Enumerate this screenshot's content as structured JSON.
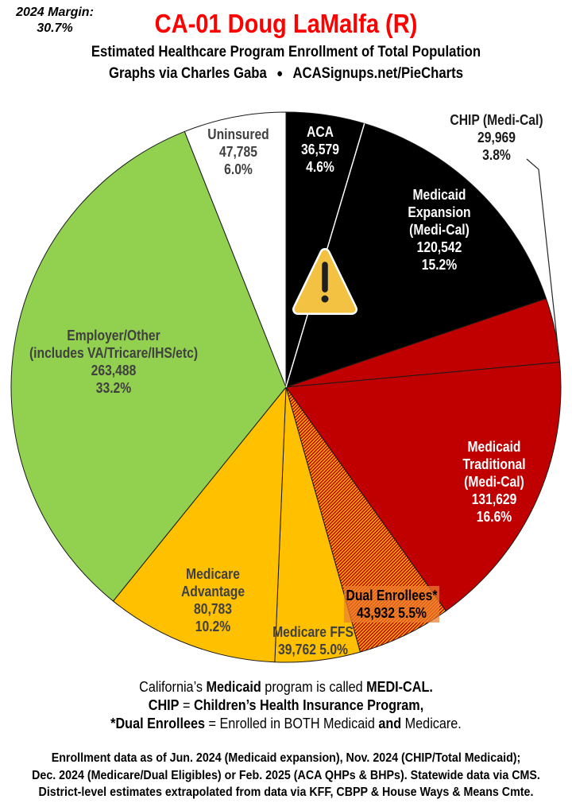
{
  "header": {
    "margin_label": "2024 Margin:",
    "margin_value": "30.7%",
    "title": "CA-01 Doug LaMalfa (R)",
    "subtitle": "Estimated Healthcare Program Enrollment of Total Population",
    "credit_left": "Graphs via Charles Gaba",
    "credit_sep": "●",
    "credit_right": "ACASignups.net/PieCharts"
  },
  "chart_data": {
    "type": "pie",
    "title": "Estimated Healthcare Program Enrollment of Total Population",
    "direction": "clockwise",
    "start_angle_deg": 0,
    "slices": [
      {
        "id": "aca",
        "name": "ACA",
        "value": 36579,
        "value_display": "36,579",
        "pct": "4.6%",
        "color": "#000000",
        "label_color": "#FFFFFF",
        "label_lines": [
          "ACA",
          "36,579",
          "4.6%"
        ]
      },
      {
        "id": "medicaid-expansion",
        "name": "Medicaid Expansion (Medi-Cal)",
        "value": 120542,
        "value_display": "120,542",
        "pct": "15.2%",
        "color": "#000000",
        "label_color": "#FFFFFF",
        "label_lines": [
          "Medicaid",
          "Expansion",
          "(Medi-Cal)",
          "120,542",
          "15.2%"
        ]
      },
      {
        "id": "chip",
        "name": "CHIP (Medi-Cal)",
        "value": 29969,
        "value_display": "29,969",
        "pct": "3.8%",
        "color": "#C00000",
        "label_color": "#1A1A1A",
        "label_outside": true,
        "callout": true,
        "label_lines": [
          "CHIP (Medi-Cal)",
          "29,969",
          "3.8%"
        ]
      },
      {
        "id": "medicaid-traditional",
        "name": "Medicaid Traditional (Medi-Cal)",
        "value": 131629,
        "value_display": "131,629",
        "pct": "16.6%",
        "color": "#C00000",
        "label_color": "#FFFFFF",
        "label_lines": [
          "Medicaid",
          "Traditional",
          "(Medi-Cal)",
          "131,629",
          "16.6%"
        ]
      },
      {
        "id": "dual-enrollees",
        "name": "Dual Enrollees*",
        "value": 43932,
        "value_display": "43,932",
        "pct": "5.5%",
        "color": "hatch",
        "hatch_colors": [
          "#FFC000",
          "#C00000"
        ],
        "label_color": "#000000",
        "label_bg": "rgba(237,125,49,0.72)",
        "label_lines": [
          "Dual Enrollees*",
          "43,932 5.5%"
        ]
      },
      {
        "id": "medicare-ffs",
        "name": "Medicare FFS",
        "value": 39762,
        "value_display": "39,762",
        "pct": "5.0%",
        "color": "#FFC000",
        "label_color": "#404040",
        "label_lines": [
          "Medicare FFS",
          "39,762 5.0%"
        ]
      },
      {
        "id": "medicare-advantage",
        "name": "Medicare Advantage",
        "value": 80783,
        "value_display": "80,783",
        "pct": "10.2%",
        "color": "#FFC000",
        "label_color": "#404040",
        "label_lines": [
          "Medicare",
          "Advantage",
          "80,783",
          "10.2%"
        ]
      },
      {
        "id": "employer-other",
        "name": "Employer/Other (includes VA/Tricare/IHS/etc)",
        "value": 263488,
        "value_display": "263,488",
        "pct": "33.2%",
        "color": "#92D050",
        "label_color": "#404040",
        "label_lines": [
          "Employer/Other",
          "(includes VA/Tricare/IHS/etc)",
          "263,488",
          "33.2%"
        ]
      },
      {
        "id": "uninsured",
        "name": "Uninsured",
        "value": 47785,
        "value_display": "47,785",
        "pct": "6.0%",
        "color": "#FFFFFF",
        "label_color": "#404040",
        "label_lines": [
          "Uninsured",
          "47,785",
          "6.0%"
        ]
      }
    ],
    "warning_icon": {
      "fill": "#F4C243",
      "border": "#FFFFFF",
      "mark": "#1F1F1F"
    }
  },
  "footnotes": {
    "lines": [
      [
        [
          "California’s ",
          0
        ],
        [
          "Medicaid",
          1
        ],
        [
          " program is called ",
          0
        ],
        [
          "MEDI-CAL.",
          1
        ]
      ],
      [
        [
          "CHIP",
          1
        ],
        [
          " = ",
          0
        ],
        [
          "Children’s Health Insurance Program,",
          1
        ]
      ],
      [
        [
          "*Dual Enrollees",
          1
        ],
        [
          " = Enrolled in BOTH Medicaid ",
          0
        ],
        [
          "and",
          1
        ],
        [
          " Medicare.",
          0
        ]
      ]
    ]
  },
  "source_note": {
    "lines": [
      "Enrollment data as of Jun. 2024 (Medicaid expansion), Nov. 2024 (CHIP/Total Medicaid);",
      "Dec. 2024 (Medicare/Dual Eligibles) or Feb. 2025 (ACA QHPs & BHPs). Statewide data via CMS.",
      "District-level estimates extrapolated from data via KFF, CBPP & House Ways & Means Cmte."
    ]
  }
}
